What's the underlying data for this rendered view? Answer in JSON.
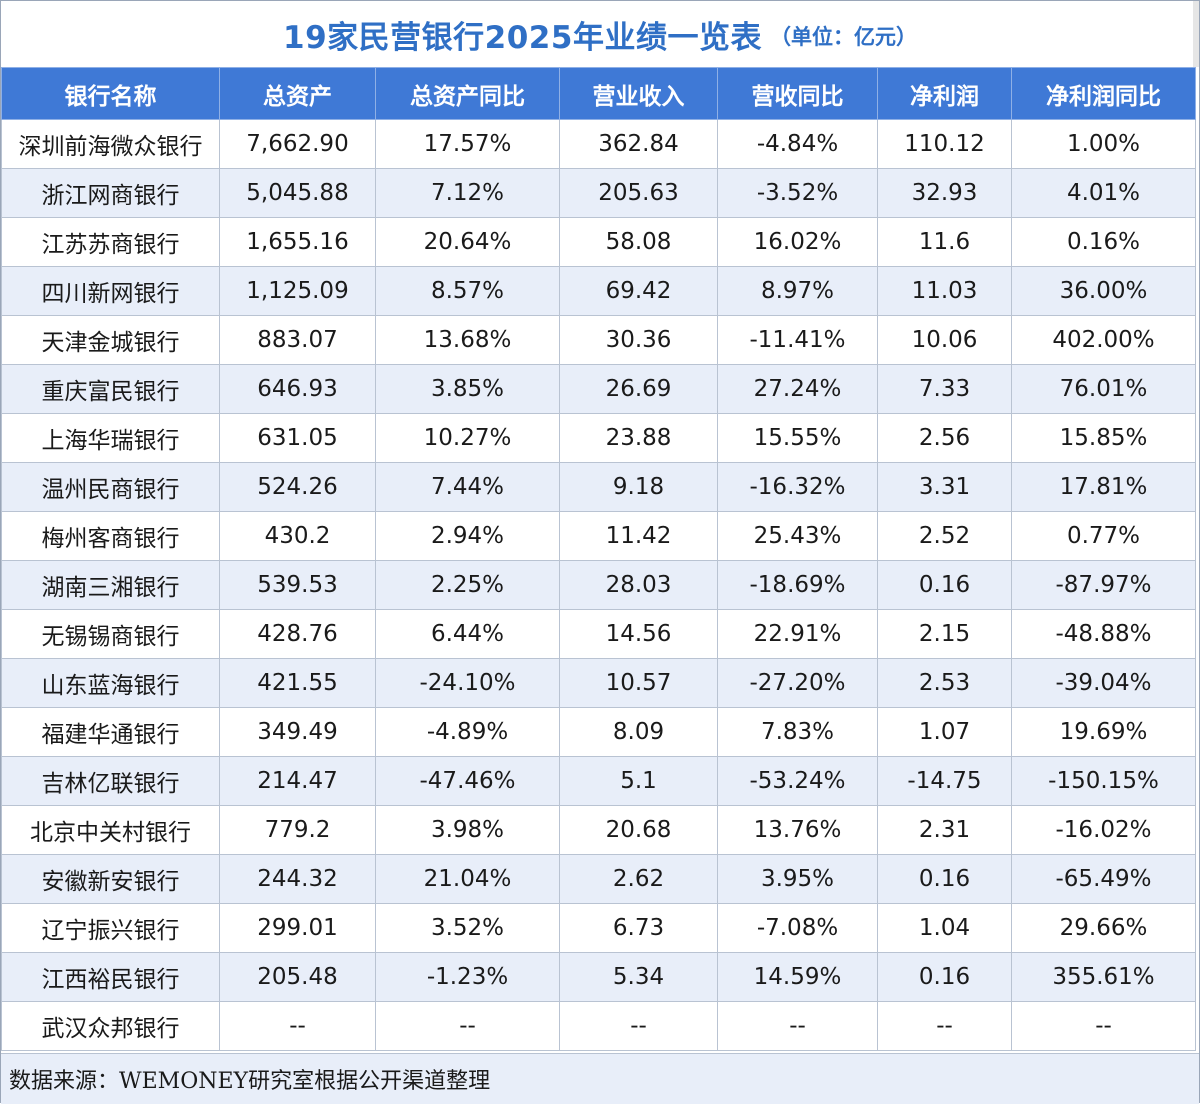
{
  "title": {
    "main": "19家民营银行2025年业绩一览表",
    "unit": "（单位：亿元）"
  },
  "table": {
    "columns": [
      "银行名称",
      "总资产",
      "总资产同比",
      "营业收入",
      "营收同比",
      "净利润",
      "净利润同比"
    ],
    "rows": [
      [
        "深圳前海微众银行",
        "7,662.90",
        "17.57%",
        "362.84",
        "-4.84%",
        "110.12",
        "1.00%"
      ],
      [
        "浙江网商银行",
        "5,045.88",
        "7.12%",
        "205.63",
        "-3.52%",
        "32.93",
        "4.01%"
      ],
      [
        "江苏苏商银行",
        "1,655.16",
        "20.64%",
        "58.08",
        "16.02%",
        "11.6",
        "0.16%"
      ],
      [
        "四川新网银行",
        "1,125.09",
        "8.57%",
        "69.42",
        "8.97%",
        "11.03",
        "36.00%"
      ],
      [
        "天津金城银行",
        "883.07",
        "13.68%",
        "30.36",
        "-11.41%",
        "10.06",
        "402.00%"
      ],
      [
        "重庆富民银行",
        "646.93",
        "3.85%",
        "26.69",
        "27.24%",
        "7.33",
        "76.01%"
      ],
      [
        "上海华瑞银行",
        "631.05",
        "10.27%",
        "23.88",
        "15.55%",
        "2.56",
        "15.85%"
      ],
      [
        "温州民商银行",
        "524.26",
        "7.44%",
        "9.18",
        "-16.32%",
        "3.31",
        "17.81%"
      ],
      [
        "梅州客商银行",
        "430.2",
        "2.94%",
        "11.42",
        "25.43%",
        "2.52",
        "0.77%"
      ],
      [
        "湖南三湘银行",
        "539.53",
        "2.25%",
        "28.03",
        "-18.69%",
        "0.16",
        "-87.97%"
      ],
      [
        "无锡锡商银行",
        "428.76",
        "6.44%",
        "14.56",
        "22.91%",
        "2.15",
        "-48.88%"
      ],
      [
        "山东蓝海银行",
        "421.55",
        "-24.10%",
        "10.57",
        "-27.20%",
        "2.53",
        "-39.04%"
      ],
      [
        "福建华通银行",
        "349.49",
        "-4.89%",
        "8.09",
        "7.83%",
        "1.07",
        "19.69%"
      ],
      [
        "吉林亿联银行",
        "214.47",
        "-47.46%",
        "5.1",
        "-53.24%",
        "-14.75",
        "-150.15%"
      ],
      [
        "北京中关村银行",
        "779.2",
        "3.98%",
        "20.68",
        "13.76%",
        "2.31",
        "-16.02%"
      ],
      [
        "安徽新安银行",
        "244.32",
        "21.04%",
        "2.62",
        "3.95%",
        "0.16",
        "-65.49%"
      ],
      [
        "辽宁振兴银行",
        "299.01",
        "3.52%",
        "6.73",
        "-7.08%",
        "1.04",
        "29.66%"
      ],
      [
        "江西裕民银行",
        "205.48",
        "-1.23%",
        "5.34",
        "14.59%",
        "0.16",
        "355.61%"
      ],
      [
        "武汉众邦银行",
        "--",
        "--",
        "--",
        "--",
        "--",
        "--"
      ]
    ]
  },
  "footer": {
    "source": "数据来源：WEMONEY研究室根据公开渠道整理"
  },
  "colors": {
    "title": "#2f6fc5",
    "header_bg": "#3f79d6",
    "stripe_bg": "#e8eef9"
  }
}
